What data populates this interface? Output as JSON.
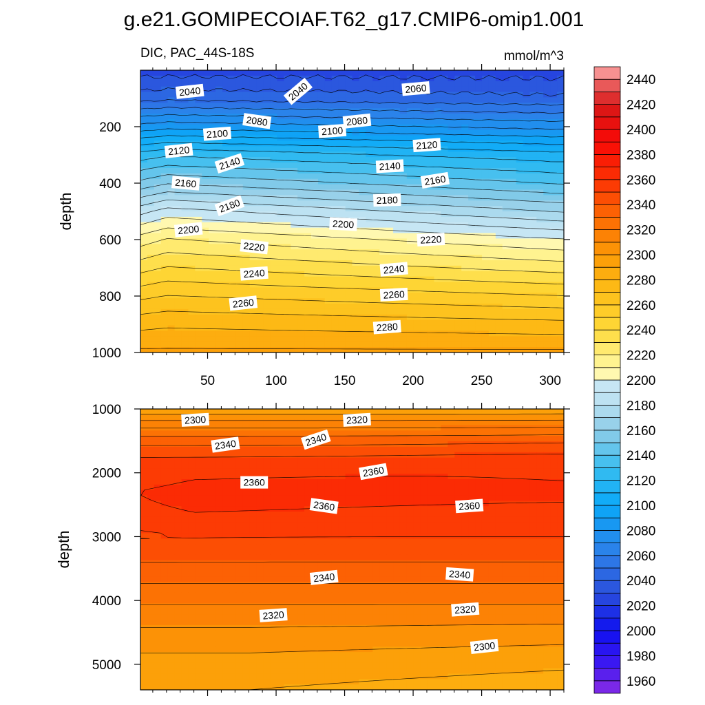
{
  "figure": {
    "title": "g.e21.GOMIPECOIAF.T62_g17.CMIP6-omip1.001",
    "subtitle_left": "DIC, PAC_44S-18S",
    "subtitle_right": "mmol/m^3"
  },
  "chart_data": [
    {
      "type": "heatmap",
      "panel": "upper",
      "description": "Filled contour of DIC vs time index (x) and depth (y), 0-1000 m",
      "xlabel": "",
      "ylabel": "depth",
      "xlim": [
        1,
        310
      ],
      "ylim": [
        1000,
        0
      ],
      "x_ticks": [
        50,
        100,
        150,
        200,
        250,
        300
      ],
      "y_ticks": [
        200,
        400,
        600,
        800,
        1000
      ],
      "contour_labels": [
        {
          "text": "2040",
          "x": 37,
          "y": 75
        },
        {
          "text": "2040",
          "x": 116,
          "y": 75
        },
        {
          "text": "2060",
          "x": 202,
          "y": 65
        },
        {
          "text": "2080",
          "x": 86,
          "y": 180
        },
        {
          "text": "2080",
          "x": 159,
          "y": 180
        },
        {
          "text": "2100",
          "x": 57,
          "y": 225
        },
        {
          "text": "2100",
          "x": 141,
          "y": 215
        },
        {
          "text": "2120",
          "x": 29,
          "y": 285
        },
        {
          "text": "2120",
          "x": 210,
          "y": 265
        },
        {
          "text": "2140",
          "x": 66,
          "y": 330
        },
        {
          "text": "2140",
          "x": 183,
          "y": 340
        },
        {
          "text": "2160",
          "x": 34,
          "y": 400
        },
        {
          "text": "2160",
          "x": 216,
          "y": 390
        },
        {
          "text": "2180",
          "x": 66,
          "y": 480
        },
        {
          "text": "2180",
          "x": 181,
          "y": 460
        },
        {
          "text": "2200",
          "x": 36,
          "y": 565
        },
        {
          "text": "2200",
          "x": 149,
          "y": 545
        },
        {
          "text": "2220",
          "x": 84,
          "y": 625
        },
        {
          "text": "2220",
          "x": 213,
          "y": 600
        },
        {
          "text": "2240",
          "x": 84,
          "y": 720
        },
        {
          "text": "2240",
          "x": 186,
          "y": 705
        },
        {
          "text": "2260",
          "x": 76,
          "y": 825
        },
        {
          "text": "2260",
          "x": 186,
          "y": 795
        },
        {
          "text": "2280",
          "x": 181,
          "y": 910
        }
      ]
    },
    {
      "type": "heatmap",
      "panel": "lower",
      "description": "Filled contour of DIC vs time index (x) and depth (y), 1000-5400 m",
      "xlabel": "",
      "ylabel": "depth",
      "xlim": [
        1,
        310
      ],
      "ylim": [
        5400,
        1000
      ],
      "y_ticks": [
        1000,
        2000,
        3000,
        4000,
        5000
      ],
      "contour_labels": [
        {
          "text": "2300",
          "x": 41,
          "y": 1170
        },
        {
          "text": "2320",
          "x": 159,
          "y": 1170
        },
        {
          "text": "2340",
          "x": 63,
          "y": 1560
        },
        {
          "text": "2340",
          "x": 129,
          "y": 1480
        },
        {
          "text": "2360",
          "x": 84,
          "y": 2150
        },
        {
          "text": "2360",
          "x": 171,
          "y": 1980
        },
        {
          "text": "2360",
          "x": 135,
          "y": 2520
        },
        {
          "text": "2360",
          "x": 241,
          "y": 2520
        },
        {
          "text": "2340",
          "x": 135,
          "y": 3640
        },
        {
          "text": "2340",
          "x": 234,
          "y": 3590
        },
        {
          "text": "2320",
          "x": 98,
          "y": 4230
        },
        {
          "text": "2320",
          "x": 238,
          "y": 4140
        },
        {
          "text": "2300",
          "x": 252,
          "y": 4720
        }
      ]
    }
  ],
  "colorbar": {
    "min": 1950,
    "max": 2450,
    "step": 10,
    "tick_labels": [
      "1960",
      "1980",
      "2000",
      "2020",
      "2040",
      "2060",
      "2080",
      "2100",
      "2120",
      "2140",
      "2160",
      "2180",
      "2200",
      "2220",
      "2240",
      "2260",
      "2280",
      "2300",
      "2320",
      "2340",
      "2360",
      "2380",
      "2400",
      "2420",
      "2440"
    ]
  },
  "colors": {
    "stops": [
      {
        "v": 1950,
        "c": "#8a2ce6"
      },
      {
        "v": 1975,
        "c": "#3a18f2"
      },
      {
        "v": 2000,
        "c": "#1010f0"
      },
      {
        "v": 2030,
        "c": "#2a4fdc"
      },
      {
        "v": 2060,
        "c": "#2e7ee8"
      },
      {
        "v": 2100,
        "c": "#0aa8f8"
      },
      {
        "v": 2130,
        "c": "#38bdf0"
      },
      {
        "v": 2160,
        "c": "#8fcde8"
      },
      {
        "v": 2190,
        "c": "#c6e6f4"
      },
      {
        "v": 2200,
        "c": "#fffac0"
      },
      {
        "v": 2220,
        "c": "#fff080"
      },
      {
        "v": 2240,
        "c": "#fed93a"
      },
      {
        "v": 2270,
        "c": "#fdbf18"
      },
      {
        "v": 2300,
        "c": "#fc9a06"
      },
      {
        "v": 2330,
        "c": "#fc6a04"
      },
      {
        "v": 2360,
        "c": "#fc3204"
      },
      {
        "v": 2390,
        "c": "#f80a06"
      },
      {
        "v": 2420,
        "c": "#d81818"
      },
      {
        "v": 2440,
        "c": "#ee6e6e"
      },
      {
        "v": 2450,
        "c": "#ffb4b4"
      }
    ]
  }
}
